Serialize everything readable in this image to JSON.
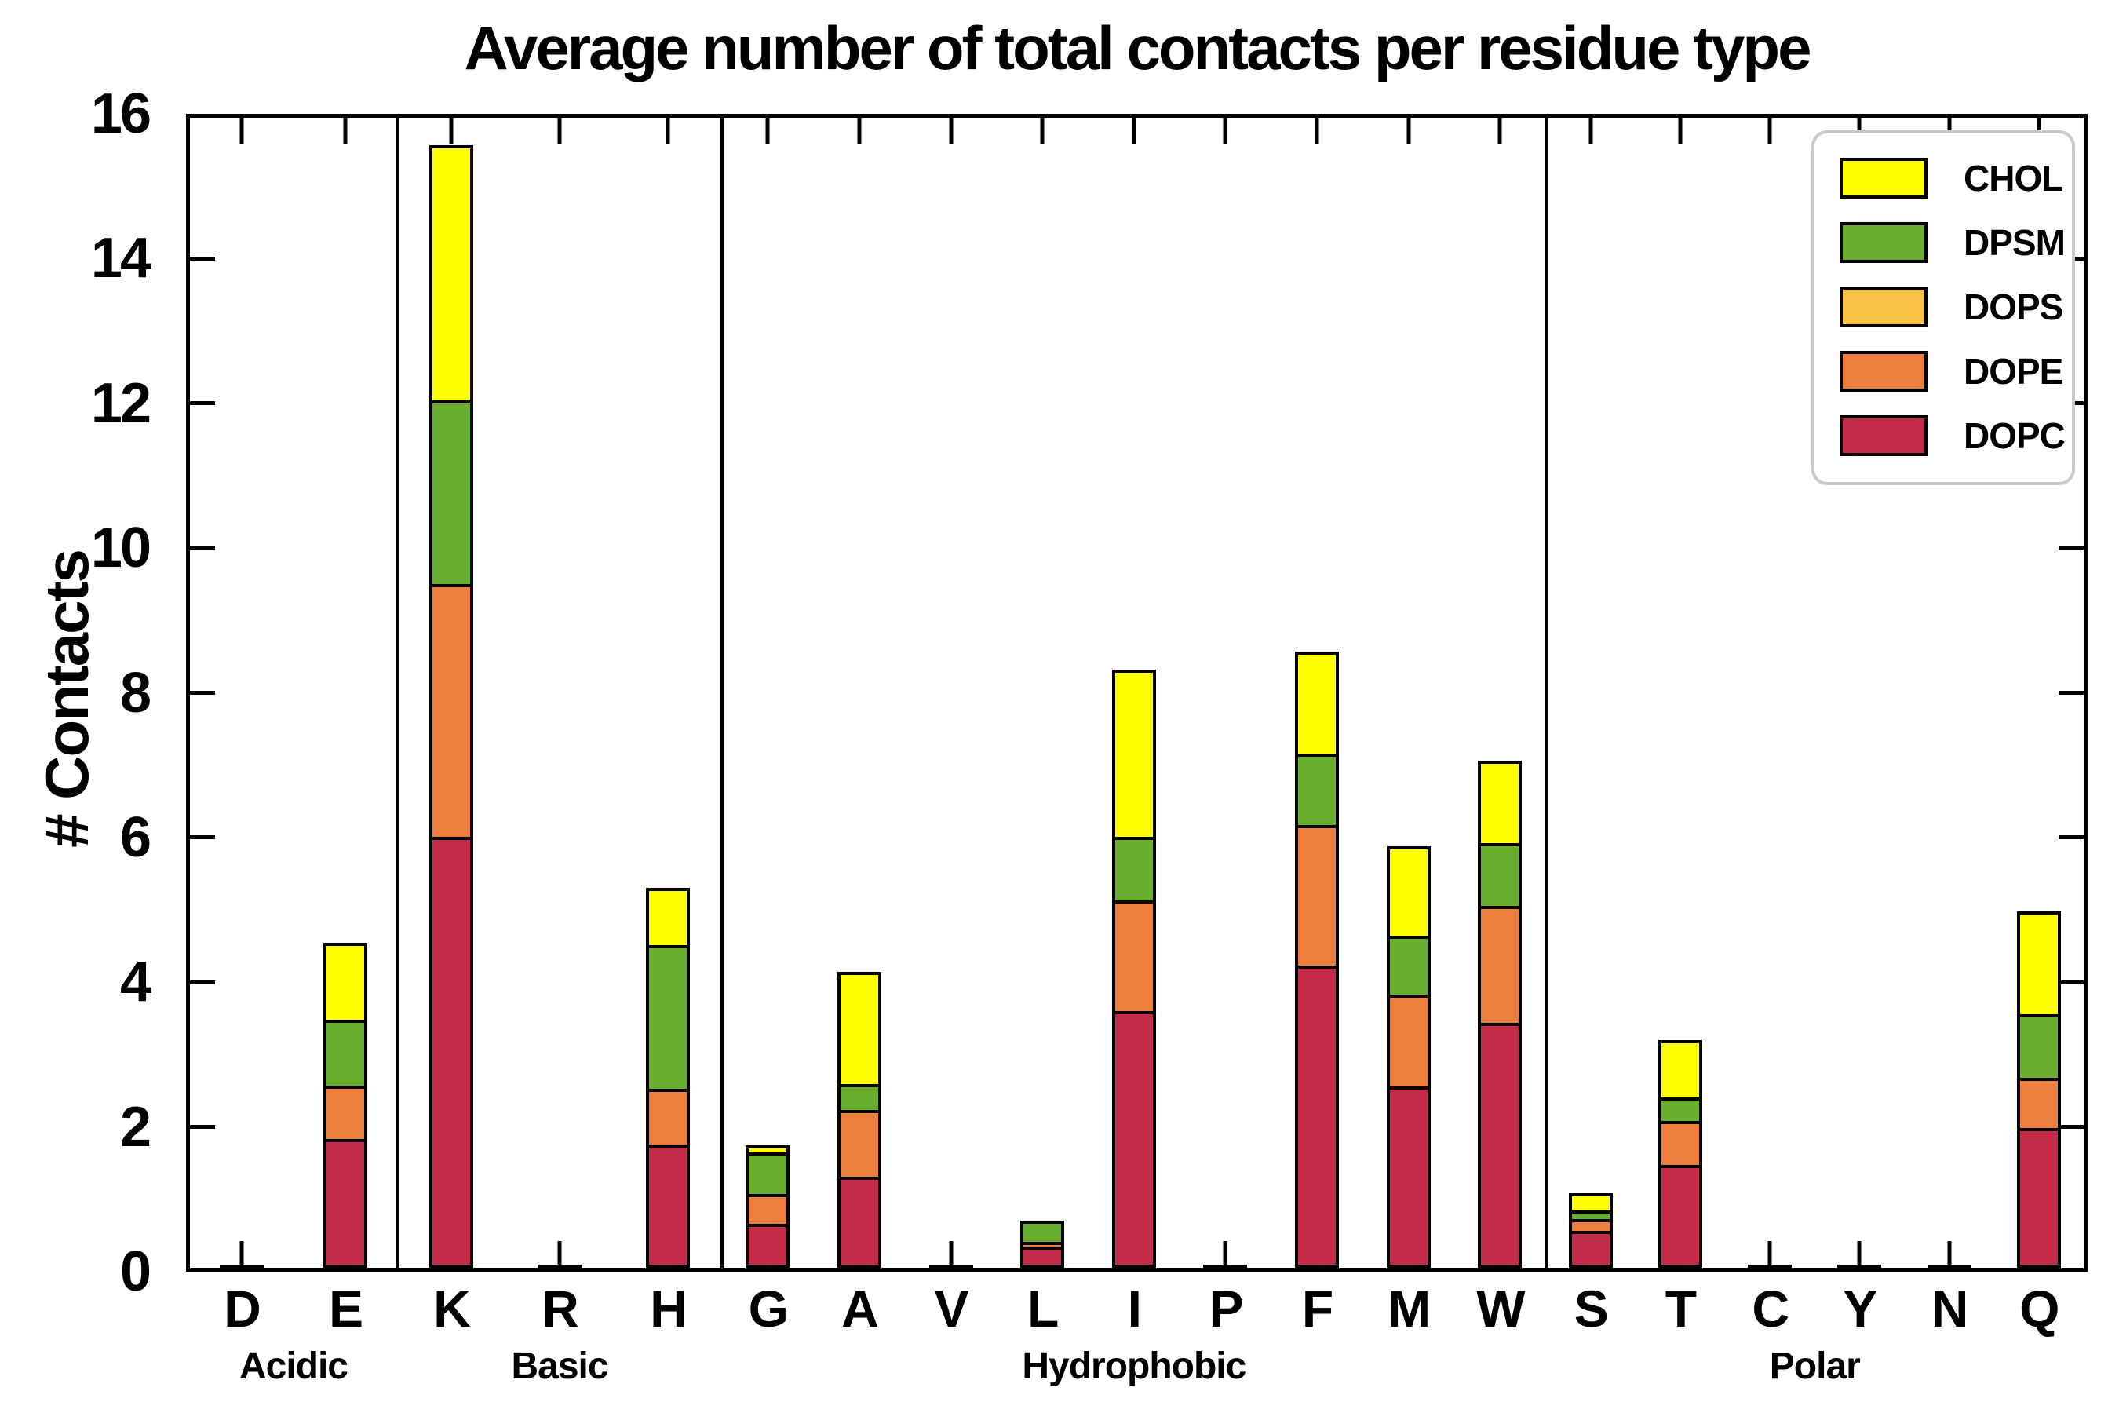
{
  "chart_data": {
    "type": "bar",
    "stacked": true,
    "title": "Average number of total contacts per residue type",
    "ylabel": "# Contacts",
    "ylim": [
      0,
      16
    ],
    "yticks": [
      0,
      2,
      4,
      6,
      8,
      10,
      12,
      14,
      16
    ],
    "grid": false,
    "legend_position": "upper right",
    "legend": [
      "CHOL",
      "DPSM",
      "DOPS",
      "DOPE",
      "DOPC"
    ],
    "stack_order_bottom_to_top": [
      "DOPC",
      "DOPE",
      "DOPS",
      "DPSM",
      "CHOL"
    ],
    "colors": {
      "CHOL": "#FFFF00",
      "DPSM": "#6AAE2E",
      "DOPS": "#F7C244",
      "DOPE": "#EE7E3B",
      "DOPC": "#C32B49"
    },
    "axis_color": "#000000",
    "groups": [
      {
        "label": "Acidic",
        "width_pct": 10.94,
        "residues": [
          "D",
          "E"
        ]
      },
      {
        "label": "Basic",
        "width_pct": 17.16,
        "residues": [
          "K",
          "R",
          "H"
        ]
      },
      {
        "label": "Hydrophobic",
        "width_pct": 43.5,
        "residues": [
          "G",
          "A",
          "V",
          "L",
          "I",
          "P",
          "F",
          "M",
          "W"
        ]
      },
      {
        "label": "Polar",
        "width_pct": 28.4,
        "residues": [
          "S",
          "T",
          "C",
          "Y",
          "N",
          "Q"
        ]
      }
    ],
    "values": {
      "D": {
        "DOPC": 0.02,
        "DOPE": 0,
        "DOPS": 0,
        "DPSM": 0,
        "CHOL": 0
      },
      "E": {
        "DOPC": 1.78,
        "DOPE": 0.78,
        "DOPS": 0,
        "DPSM": 0.95,
        "CHOL": 1.11
      },
      "K": {
        "DOPC": 5.95,
        "DOPE": 3.54,
        "DOPS": 0,
        "DPSM": 2.58,
        "CHOL": 3.57
      },
      "R": {
        "DOPC": 0.02,
        "DOPE": 0,
        "DOPS": 0,
        "DPSM": 0,
        "CHOL": 0
      },
      "H": {
        "DOPC": 1.7,
        "DOPE": 0.82,
        "DOPS": 0,
        "DPSM": 2.02,
        "CHOL": 0.84
      },
      "G": {
        "DOPC": 0.61,
        "DOPE": 0.45,
        "DOPS": 0,
        "DPSM": 0.62,
        "CHOL": 0.14
      },
      "A": {
        "DOPC": 1.26,
        "DOPE": 0.96,
        "DOPS": 0,
        "DPSM": 0.4,
        "CHOL": 1.6
      },
      "V": {
        "DOPC": 0.02,
        "DOPE": 0,
        "DOPS": 0,
        "DPSM": 0,
        "CHOL": 0
      },
      "L": {
        "DOPC": 0.29,
        "DOPE": 0.11,
        "DOPS": 0,
        "DPSM": 0.34,
        "CHOL": 0
      },
      "I": {
        "DOPC": 3.55,
        "DOPE": 1.57,
        "DOPS": 0,
        "DPSM": 0.92,
        "CHOL": 2.36
      },
      "P": {
        "DOPC": 0.02,
        "DOPE": 0,
        "DOPS": 0,
        "DPSM": 0,
        "CHOL": 0
      },
      "F": {
        "DOPC": 4.18,
        "DOPE": 1.98,
        "DOPS": 0,
        "DPSM": 1.03,
        "CHOL": 1.46
      },
      "M": {
        "DOPC": 2.51,
        "DOPE": 1.31,
        "DOPS": 0,
        "DPSM": 0.85,
        "CHOL": 1.28
      },
      "W": {
        "DOPC": 3.38,
        "DOPE": 1.66,
        "DOPS": 0,
        "DPSM": 0.91,
        "CHOL": 1.19
      },
      "S": {
        "DOPC": 0.51,
        "DOPE": 0.21,
        "DOPS": 0,
        "DPSM": 0.16,
        "CHOL": 0.28
      },
      "T": {
        "DOPC": 1.42,
        "DOPE": 0.65,
        "DOPS": 0,
        "DPSM": 0.37,
        "CHOL": 0.84
      },
      "C": {
        "DOPC": 0.02,
        "DOPE": 0,
        "DOPS": 0,
        "DPSM": 0,
        "CHOL": 0
      },
      "Y": {
        "DOPC": 0.02,
        "DOPE": 0,
        "DOPS": 0,
        "DPSM": 0,
        "CHOL": 0
      },
      "N": {
        "DOPC": 0.02,
        "DOPE": 0,
        "DOPS": 0,
        "DPSM": 0,
        "CHOL": 0
      },
      "Q": {
        "DOPC": 1.93,
        "DOPE": 0.74,
        "DOPS": 0,
        "DPSM": 0.92,
        "CHOL": 1.47
      }
    }
  }
}
